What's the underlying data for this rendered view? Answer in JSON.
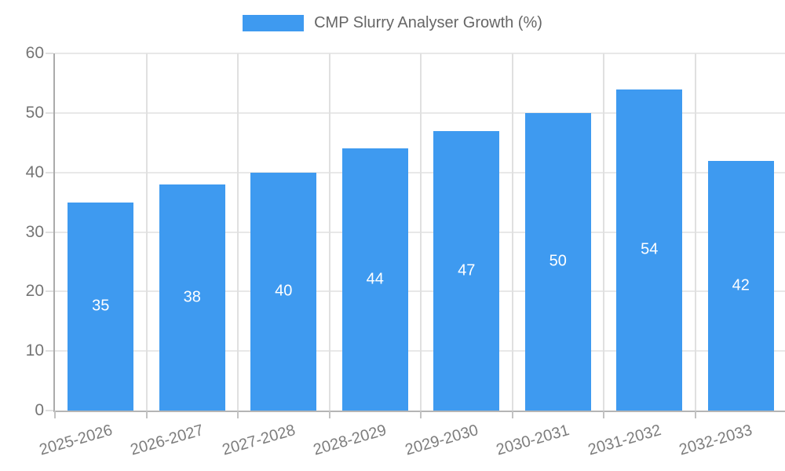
{
  "legend": {
    "label": "CMP Slurry Analyser Growth (%)"
  },
  "chart_data": {
    "type": "bar",
    "title": "CMP Slurry Analyser Growth (%)",
    "categories": [
      "2025-2026",
      "2026-2027",
      "2027-2028",
      "2028-2029",
      "2029-2030",
      "2030-2031",
      "2031-2032",
      "2032-2033"
    ],
    "values": [
      35,
      38,
      40,
      44,
      47,
      50,
      54,
      42
    ],
    "value_labels": [
      "35",
      "38",
      "40",
      "44",
      "47",
      "50",
      "54",
      "42"
    ],
    "xlabel": "",
    "ylabel": "",
    "ylim": [
      0,
      60
    ],
    "ytick_step": 10,
    "ytick_labels": [
      "0",
      "10",
      "20",
      "30",
      "40",
      "50",
      "60"
    ],
    "grid": true,
    "legend_position": "top-center",
    "colors": {
      "bar": "#3e9af0",
      "bar_value_text": "#ffffff",
      "axis_line": "#ababab",
      "gridline": "#e8e8e8",
      "tick_text": "#757575",
      "legend_text": "#666666"
    }
  }
}
